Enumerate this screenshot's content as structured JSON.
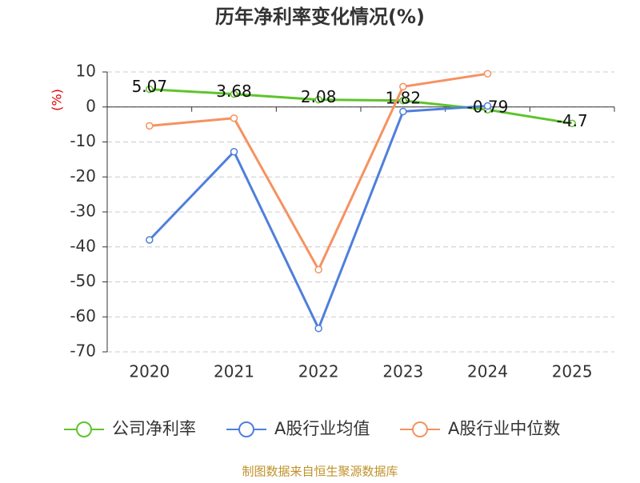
{
  "chart_data": {
    "type": "line",
    "title": "历年净利率变化情况(%)",
    "y_label": "(%)",
    "categories": [
      "2020",
      "2021",
      "2022",
      "2023",
      "2024",
      "2025"
    ],
    "series": [
      {
        "name": "公司净利率",
        "color": "#5ec42c",
        "values": [
          5.07,
          3.68,
          2.08,
          1.82,
          -0.79,
          -4.7
        ],
        "show_labels": true
      },
      {
        "name": "A股行业均值",
        "color": "#4f7fdc",
        "values": [
          -38,
          -12.8,
          -63.3,
          -1.3,
          0.3,
          null
        ]
      },
      {
        "name": "A股行业中位数",
        "color": "#f59260",
        "values": [
          -5.4,
          -3.2,
          -46.5,
          5.8,
          9.5,
          null
        ]
      }
    ],
    "ylim": [
      -70,
      10
    ],
    "yticks": [
      -70,
      -60,
      -50,
      -40,
      -30,
      -20,
      -10,
      0,
      10
    ],
    "grid": true,
    "footer": "制图数据来自恒生聚源数据库"
  }
}
